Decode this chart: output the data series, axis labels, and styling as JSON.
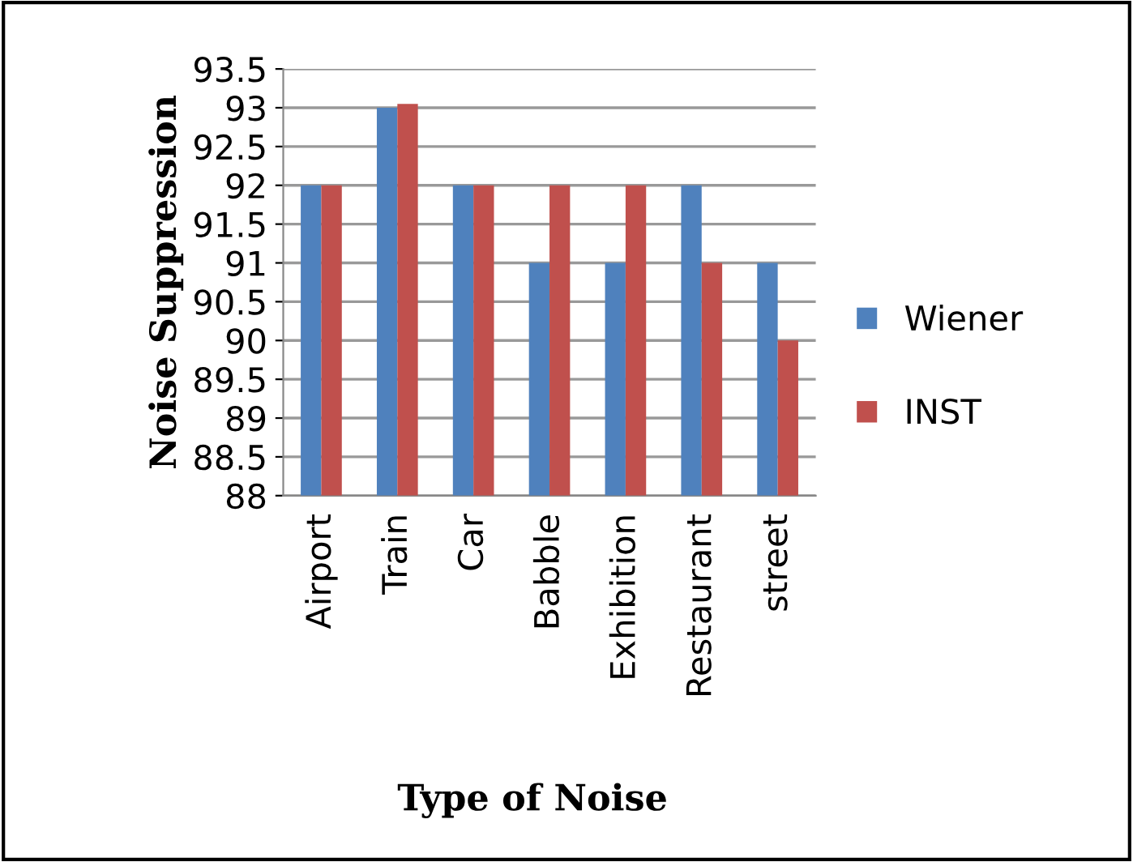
{
  "chart_data": {
    "type": "bar",
    "xlabel": "Type of Noise",
    "ylabel": "Noise Suppression",
    "categories": [
      "Airport",
      "Train",
      "Car",
      "Babble",
      "Exhibition",
      "Restaurant",
      "street"
    ],
    "series": [
      {
        "name": "Wiener",
        "color": "#4f81bd",
        "values": [
          92,
          93,
          92,
          91,
          91,
          92,
          91
        ]
      },
      {
        "name": "INST",
        "color": "#c0504d",
        "values": [
          92,
          93.05,
          92,
          92,
          92,
          91,
          90
        ]
      }
    ],
    "ylim": [
      88,
      93.5
    ],
    "yticks": [
      88,
      88.5,
      89,
      89.5,
      90,
      90.5,
      91,
      91.5,
      92,
      92.5,
      93,
      93.5
    ],
    "grid": "y",
    "legend": "right"
  }
}
